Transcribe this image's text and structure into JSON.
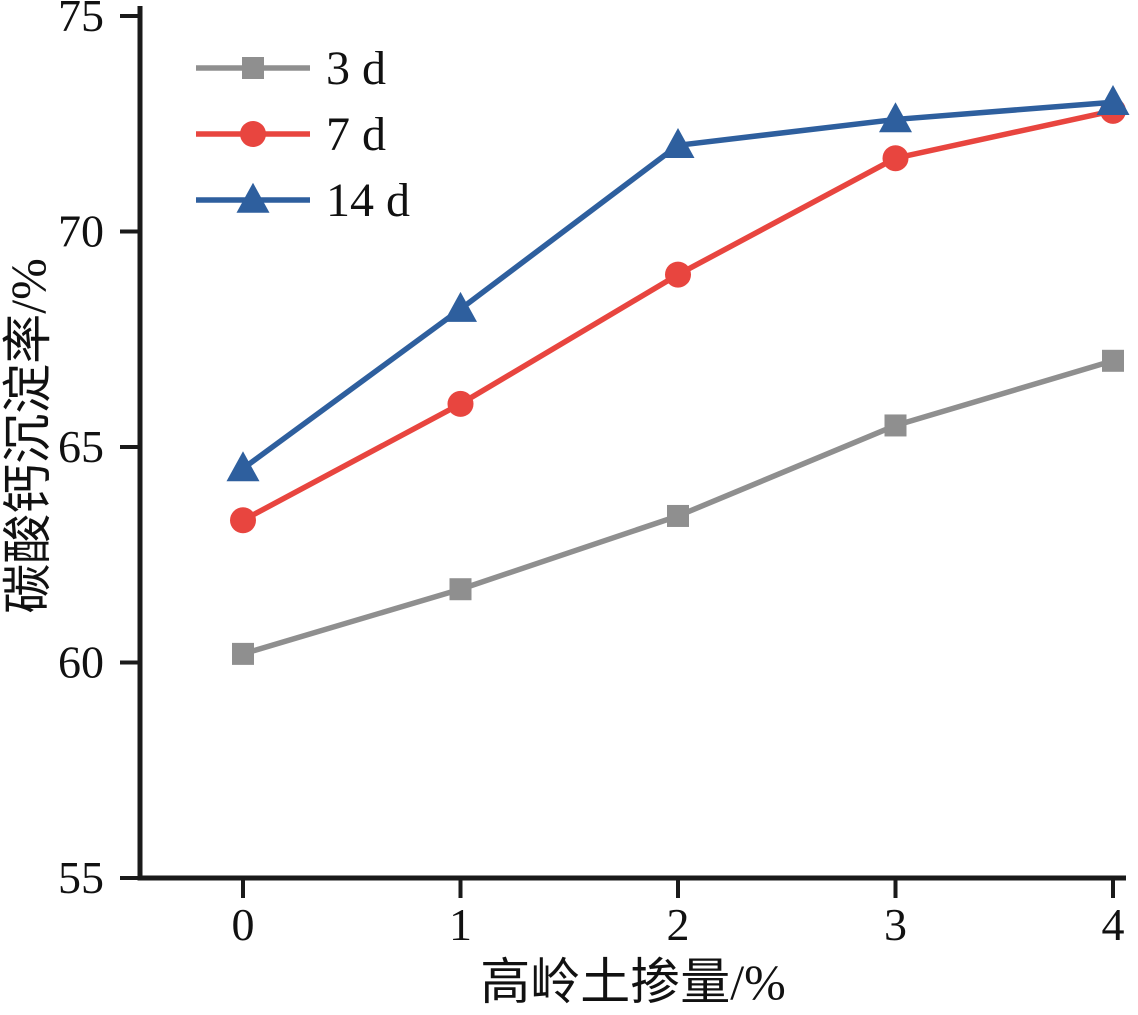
{
  "chart_data": {
    "type": "line",
    "title": "",
    "xlabel": "高岭土掺量/%",
    "ylabel": "碳酸钙沉淀率/%",
    "x": [
      0,
      1,
      2,
      3,
      4
    ],
    "xticks": [
      "0",
      "1",
      "2",
      "3",
      "4"
    ],
    "yticks": [
      55,
      60,
      65,
      70,
      75
    ],
    "xlim": [
      0,
      4
    ],
    "ylim": [
      55,
      75
    ],
    "grid": false,
    "legend_position": "top-left",
    "background": "#ffffff",
    "axis_color": "#1a1a1a",
    "series": [
      {
        "name": "3 d",
        "marker": "square",
        "color": "#8f8f8f",
        "values": [
          60.2,
          61.7,
          63.4,
          65.5,
          67.0
        ]
      },
      {
        "name": "7 d",
        "marker": "circle",
        "color": "#e8453f",
        "values": [
          63.3,
          66.0,
          69.0,
          71.7,
          72.8
        ]
      },
      {
        "name": "14 d",
        "marker": "triangle",
        "color": "#2e5f9e",
        "values": [
          64.5,
          68.2,
          72.0,
          72.6,
          73.0
        ]
      }
    ]
  }
}
